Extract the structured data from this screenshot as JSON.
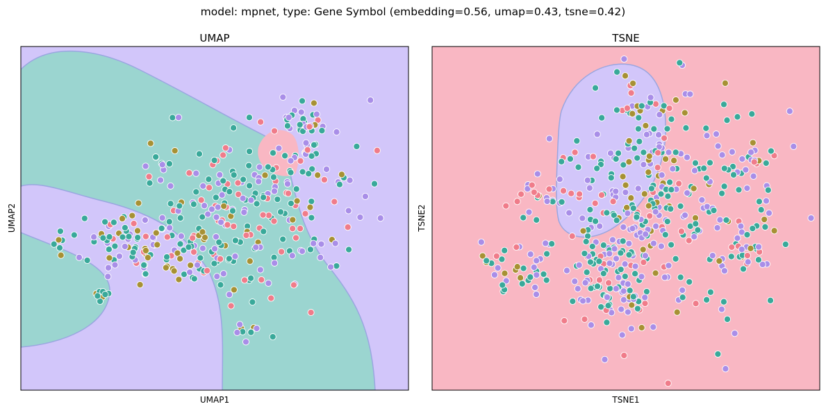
{
  "figure": {
    "suptitle": "model: mpnet, type: Gene Symbol (embedding=0.56, umap=0.43, tsne=0.42)"
  },
  "palette": {
    "class_a": "#f07c8a",
    "class_b": "#a79134",
    "class_c": "#39a99a",
    "class_d": "#a98ee8",
    "region_pink": "#f9b7c3",
    "region_teal": "#9bd5d0",
    "region_lavender": "#d2c6fa"
  },
  "chart_data": [
    {
      "type": "scatter",
      "title": "UMAP",
      "xlabel": "UMAP1",
      "ylabel": "UMAP2",
      "xlim": [
        0,
        100
      ],
      "ylim": [
        0,
        100
      ],
      "grid": false,
      "legend": "none",
      "background_regions": "decision boundary: teal band curving from top-left across center to bottom-center, small pink region upper-center-right, lavender elsewhere",
      "clusters": [
        {
          "cx": 60,
          "cy": 47,
          "sx": 13,
          "sy": 12,
          "n": 230,
          "mix": [
            0.18,
            0.12,
            0.35,
            0.35
          ]
        },
        {
          "cx": 25,
          "cy": 55,
          "sx": 8,
          "sy": 4,
          "n": 60,
          "mix": [
            0.1,
            0.2,
            0.4,
            0.3
          ]
        },
        {
          "cx": 40,
          "cy": 62,
          "sx": 10,
          "sy": 4,
          "n": 55,
          "mix": [
            0.15,
            0.25,
            0.3,
            0.3
          ]
        },
        {
          "cx": 72,
          "cy": 22,
          "sx": 3,
          "sy": 3,
          "n": 25,
          "mix": [
            0.1,
            0.05,
            0.6,
            0.25
          ]
        },
        {
          "cx": 22,
          "cy": 73,
          "sx": 2,
          "sy": 1.5,
          "n": 8,
          "mix": [
            0,
            0.3,
            0.6,
            0.1
          ]
        },
        {
          "cx": 58,
          "cy": 84,
          "sx": 1.5,
          "sy": 2,
          "n": 8,
          "mix": [
            0,
            0.3,
            0.3,
            0.4
          ]
        },
        {
          "cx": 74,
          "cy": 28,
          "sx": 1.5,
          "sy": 2,
          "n": 6,
          "mix": [
            0.6,
            0,
            0.2,
            0.2
          ]
        },
        {
          "cx": 36,
          "cy": 35,
          "sx": 2,
          "sy": 1.5,
          "n": 8,
          "mix": [
            0.2,
            0.1,
            0.3,
            0.4
          ]
        }
      ]
    },
    {
      "type": "scatter",
      "title": "TSNE",
      "xlabel": "TSNE1",
      "ylabel": "TSNE2",
      "xlim": [
        0,
        100
      ],
      "ylim": [
        0,
        100
      ],
      "grid": false,
      "legend": "none",
      "background_regions": "decision boundary: pink background with lavender oval region in upper-center",
      "clusters": [
        {
          "cx": 57,
          "cy": 48,
          "sx": 14,
          "sy": 16,
          "n": 330,
          "mix": [
            0.15,
            0.12,
            0.38,
            0.35
          ]
        },
        {
          "cx": 45,
          "cy": 70,
          "sx": 5,
          "sy": 6,
          "n": 60,
          "mix": [
            0.1,
            0.1,
            0.3,
            0.5
          ]
        },
        {
          "cx": 21,
          "cy": 65,
          "sx": 4,
          "sy": 4,
          "n": 35,
          "mix": [
            0.15,
            0.15,
            0.35,
            0.35
          ]
        },
        {
          "cx": 80,
          "cy": 60,
          "sx": 4,
          "sy": 3,
          "n": 20,
          "mix": [
            0.2,
            0.1,
            0.4,
            0.3
          ]
        },
        {
          "cx": 82,
          "cy": 35,
          "sx": 4,
          "sy": 4,
          "n": 20,
          "mix": [
            0.1,
            0.2,
            0.3,
            0.4
          ]
        },
        {
          "cx": 30,
          "cy": 42,
          "sx": 5,
          "sy": 4,
          "n": 25,
          "mix": [
            0.3,
            0.1,
            0.4,
            0.2
          ]
        },
        {
          "cx": 55,
          "cy": 18,
          "sx": 5,
          "sy": 3,
          "n": 25,
          "mix": [
            0.2,
            0.2,
            0.3,
            0.3
          ]
        }
      ]
    }
  ]
}
